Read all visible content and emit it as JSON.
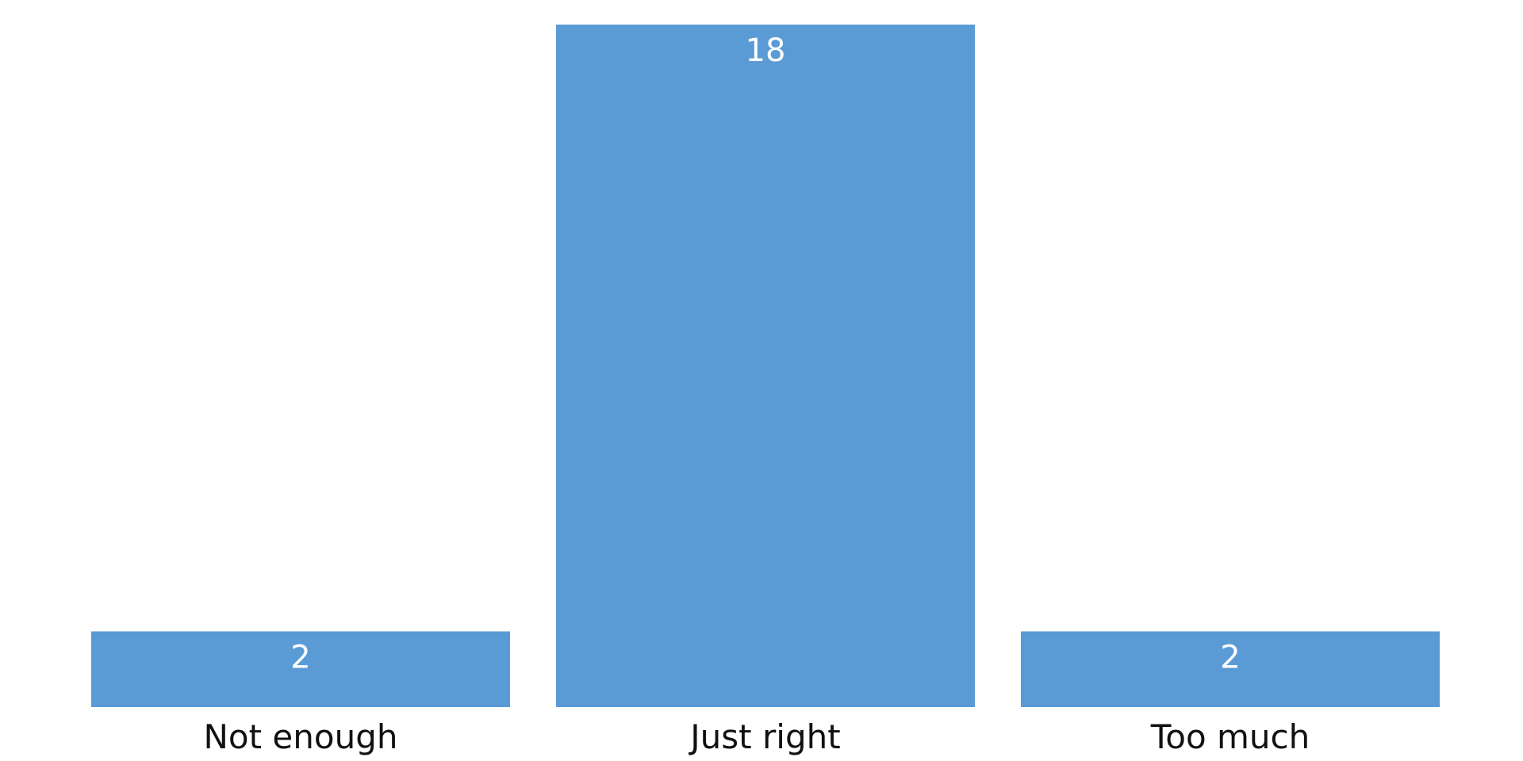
{
  "chart_data": {
    "type": "bar",
    "title": "",
    "xlabel": "",
    "ylabel": "",
    "categories": [
      "Not enough",
      "Just right",
      "Too much"
    ],
    "values": [
      2,
      18,
      2
    ],
    "value_labels": [
      "2",
      "18",
      "2"
    ],
    "ylim": [
      0,
      18
    ],
    "grid": false,
    "legend": "none",
    "bar_color": "#5b9bd5",
    "value_label_color": "#ffffff",
    "category_label_color": "#111111"
  }
}
